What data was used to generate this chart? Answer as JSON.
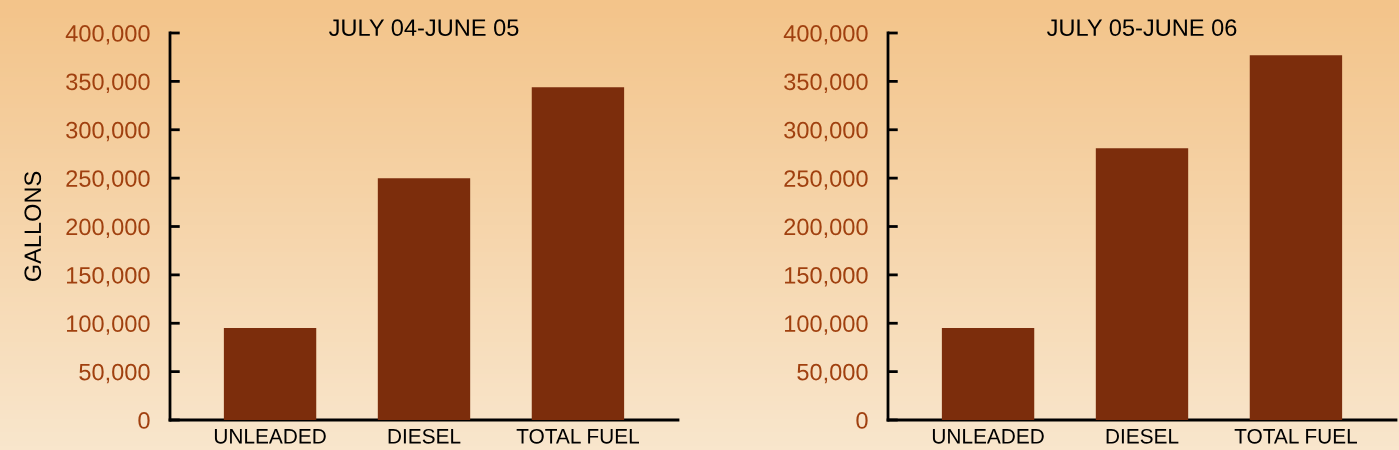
{
  "chart_data": [
    {
      "type": "bar",
      "title": "JULY 04-JUNE 05",
      "ylabel": "GALLONS",
      "categories": [
        "UNLEADED",
        "DIESEL",
        "TOTAL FUEL"
      ],
      "values": [
        95000,
        250000,
        344000
      ],
      "color": "#7c2d0c",
      "ylim": [
        0,
        400000
      ],
      "yticks": [
        {
          "value": 0,
          "label": "0"
        },
        {
          "value": 50000,
          "label": "50,000"
        },
        {
          "value": 100000,
          "label": "100,000"
        },
        {
          "value": 150000,
          "label": "150,000"
        },
        {
          "value": 200000,
          "label": "200,000"
        },
        {
          "value": 250000,
          "label": "250,000"
        },
        {
          "value": 300000,
          "label": "300,000"
        },
        {
          "value": 350000,
          "label": "350,000"
        },
        {
          "value": 400000,
          "label": "400,000"
        }
      ]
    },
    {
      "type": "bar",
      "title": "JULY 05-JUNE 06",
      "categories": [
        "UNLEADED",
        "DIESEL",
        "TOTAL FUEL"
      ],
      "values": [
        95000,
        281000,
        377000
      ],
      "color": "#7c2d0c",
      "ylim": [
        0,
        400000
      ],
      "yticks": [
        {
          "value": 0,
          "label": "0"
        },
        {
          "value": 50000,
          "label": "50,000"
        },
        {
          "value": 100000,
          "label": "100,000"
        },
        {
          "value": 150000,
          "label": "150,000"
        },
        {
          "value": 200000,
          "label": "200,000"
        },
        {
          "value": 250000,
          "label": "250,000"
        },
        {
          "value": 300000,
          "label": "300,000"
        },
        {
          "value": 350000,
          "label": "350,000"
        },
        {
          "value": 400000,
          "label": "400,000"
        }
      ]
    }
  ]
}
